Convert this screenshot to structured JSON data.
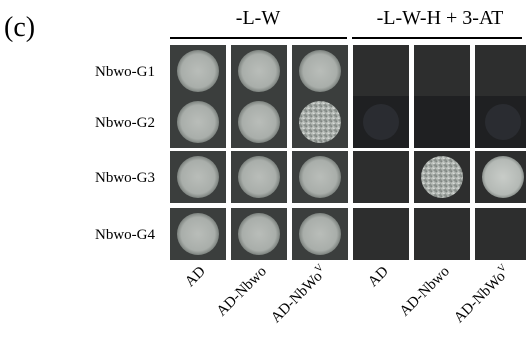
{
  "panel_label": "(c)",
  "headers": [
    "-L-W",
    "-L-W-H + 3-AT"
  ],
  "rows": [
    "Nbwo-G1",
    "Nbwo-G2",
    "Nbwo-G3",
    "Nbwo-G4"
  ],
  "columns": [
    {
      "text": "AD"
    },
    {
      "text": "AD-Nbwo"
    },
    {
      "text": "AD-NbWo",
      "sup": "V"
    },
    {
      "text": "AD"
    },
    {
      "text": "AD-Nbwo"
    },
    {
      "text": "AD-NbWo",
      "sup": "V"
    }
  ]
}
